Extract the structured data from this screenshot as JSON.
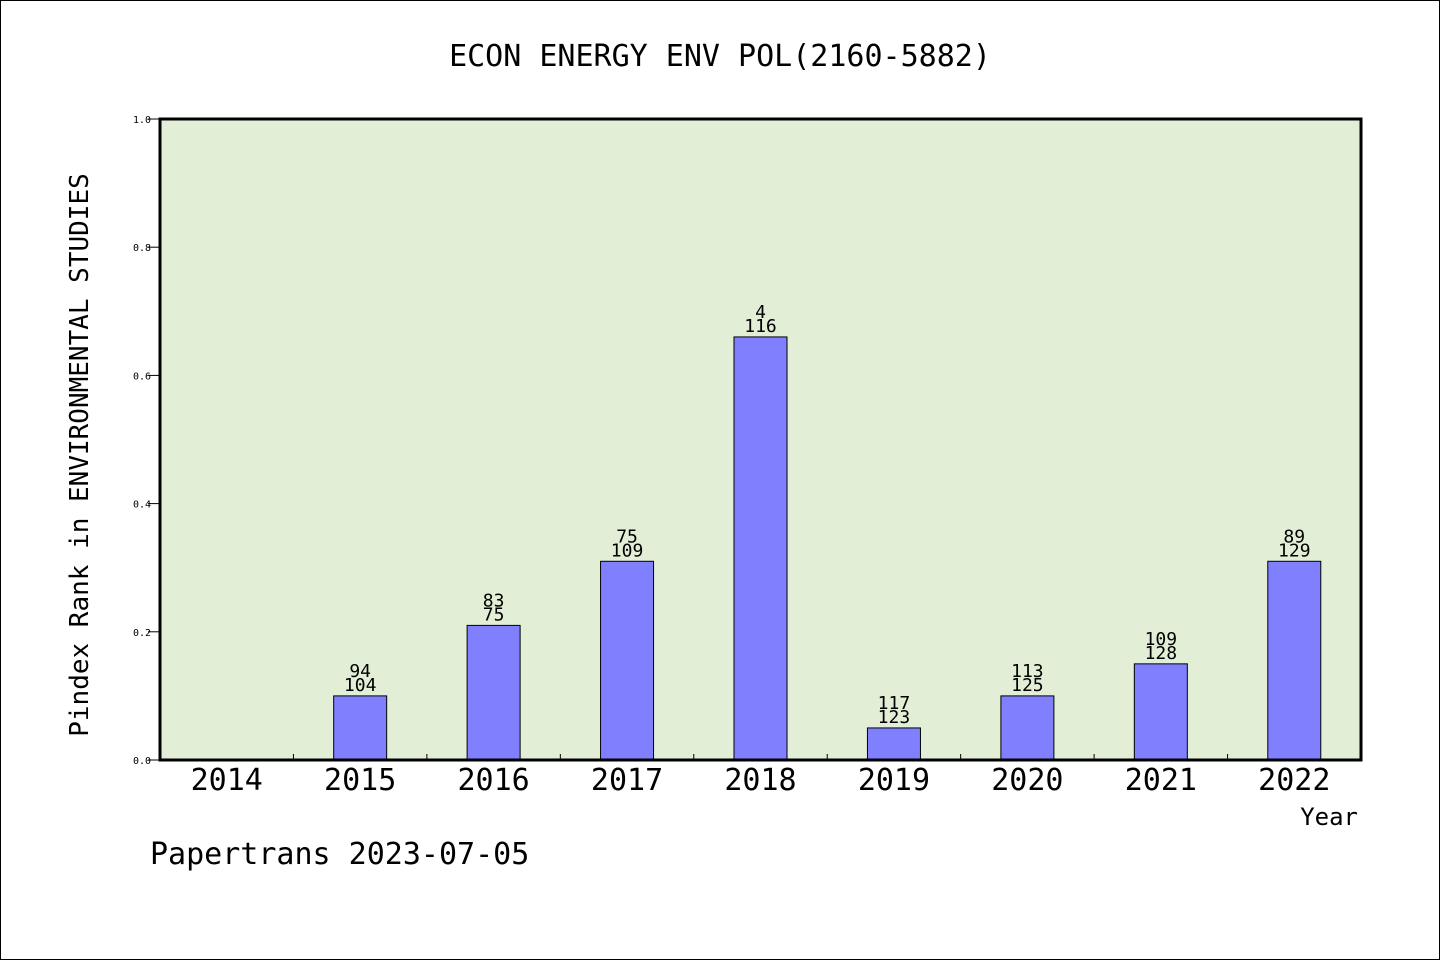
{
  "chart_data": {
    "type": "bar",
    "title": "ECON ENERGY ENV POL(2160-5882)",
    "xlabel": "Year",
    "ylabel": "Pindex Rank in ENVIRONMENTAL STUDIES",
    "categories": [
      "2014",
      "2015",
      "2016",
      "2017",
      "2018",
      "2019",
      "2020",
      "2021",
      "2022"
    ],
    "values": [
      0,
      0.1,
      0.21,
      0.31,
      0.66,
      0.05,
      0.1,
      0.15,
      0.31
    ],
    "labels_top": [
      "",
      "94",
      "83",
      "75",
      "4",
      "117",
      "113",
      "109",
      "89"
    ],
    "labels_bottom": [
      "",
      "104",
      "75",
      "109",
      "116",
      "123",
      "125",
      "128",
      "129"
    ],
    "ylim": [
      0,
      1.0
    ],
    "yticks": [
      "0.0",
      "0.2",
      "0.4",
      "0.6",
      "0.8",
      "1.0"
    ],
    "grid": false,
    "colors": {
      "bar": "#8080ff",
      "plot_bg": "#e2efd6"
    }
  },
  "footer": {
    "text": "Papertrans 2023-07-05"
  }
}
